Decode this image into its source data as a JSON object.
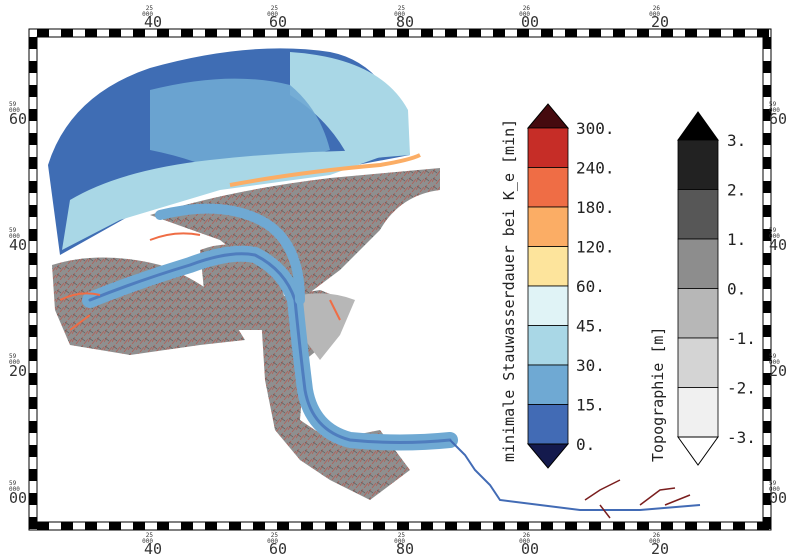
{
  "map": {
    "top_axis": {
      "major": [
        "40",
        "60",
        "80",
        "00",
        "20"
      ],
      "minor": [
        "25",
        "25",
        "25",
        "26",
        "26"
      ],
      "minor_sub": [
        "000",
        "000",
        "000",
        "000",
        "000"
      ]
    },
    "bottom_axis": {
      "major": [
        "40",
        "60",
        "80",
        "00",
        "20"
      ],
      "minor": [
        "25",
        "25",
        "25",
        "26",
        "26"
      ],
      "minor_sub": [
        "000",
        "000",
        "000",
        "000",
        "000"
      ]
    },
    "left_axis": {
      "major": [
        "60",
        "40",
        "20",
        "00"
      ],
      "minor": [
        "59",
        "59",
        "59",
        "59"
      ],
      "minor_sub": [
        "000",
        "000",
        "000",
        "000"
      ]
    },
    "right_axis": {
      "major": [
        "60",
        "40",
        "20",
        "00"
      ],
      "minor": [
        "59",
        "59",
        "59",
        "59"
      ],
      "minor_sub": [
        "000",
        "000",
        "000",
        "000"
      ]
    }
  },
  "colorbar_duration": {
    "title": "minimale Stauwasserdauer bei K_e [min]",
    "labels": [
      "300.",
      "240.",
      "180.",
      "120.",
      "60.",
      "45.",
      "30.",
      "15.",
      "0."
    ],
    "colors": [
      "#c62d27",
      "#ef6d45",
      "#fbad65",
      "#fde49c",
      "#e0f3f6",
      "#a9d7e6",
      "#6fa9d3",
      "#426bb5"
    ],
    "over_color": "#450a0e",
    "under_color": "#141a4d"
  },
  "colorbar_topography": {
    "title": "Topographie [m]",
    "labels": [
      "3.",
      "2.",
      "1.",
      "0.",
      "-1.",
      "-2.",
      "-3."
    ],
    "colors": [
      "#222222",
      "#575757",
      "#8d8d8d",
      "#b7b7b7",
      "#d4d4d4",
      "#f0f0f0"
    ],
    "over_color": "#000000",
    "under_color": "#ffffff"
  }
}
